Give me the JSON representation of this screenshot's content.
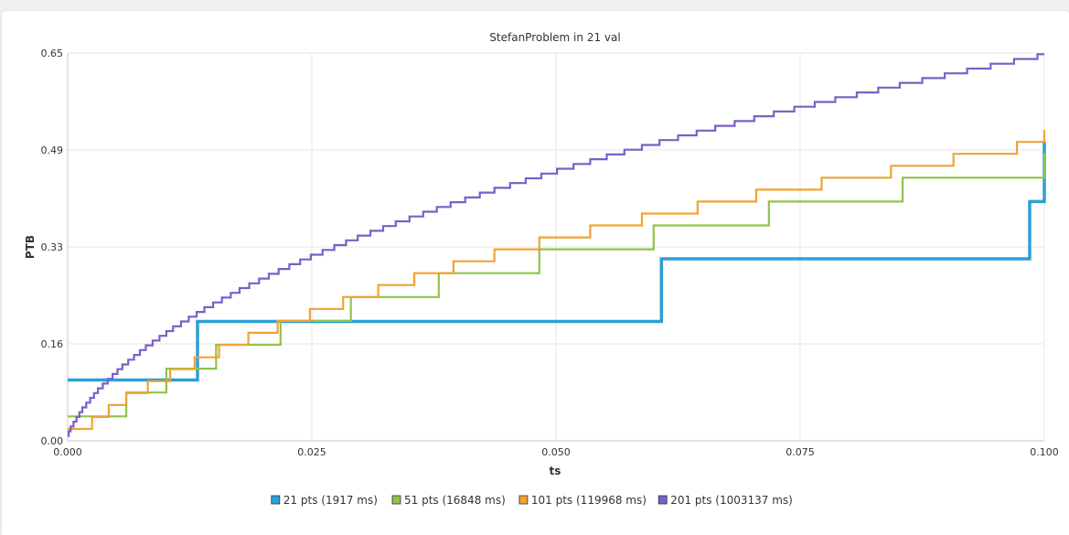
{
  "chart_data": {
    "type": "line",
    "step": true,
    "title": "StefanProblem in 21 val",
    "xlabel": "ts",
    "ylabel": "PTB",
    "xlim": [
      0,
      0.1
    ],
    "ylim": [
      0,
      0.65
    ],
    "x_ticks": [
      "0.000",
      "0.025",
      "0.050",
      "0.075",
      "0.100"
    ],
    "y_ticks": [
      "0.00",
      "0.16",
      "0.33",
      "0.49",
      "0.65"
    ],
    "grid": true,
    "legend_position": "bottom",
    "series": [
      {
        "name": "21 pts (1917 ms)",
        "color": "#2e9fd6",
        "x": [
          0.0,
          0.0133,
          0.032,
          0.0608,
          0.0985,
          0.1
        ],
        "y": [
          0.102,
          0.2,
          0.2,
          0.305,
          0.401,
          0.502
        ]
      },
      {
        "name": "51 pts (16848 ms)",
        "color": "#8fc44a",
        "x": [
          0.0,
          0.003,
          0.006,
          0.0101,
          0.0152,
          0.0218,
          0.029,
          0.038,
          0.0483,
          0.06,
          0.0718,
          0.0855,
          0.1
        ],
        "y": [
          0.041,
          0.041,
          0.081,
          0.121,
          0.161,
          0.201,
          0.241,
          0.281,
          0.321,
          0.361,
          0.401,
          0.441,
          0.482
        ]
      },
      {
        "name": "101 pts (119968 ms)",
        "color": "#f0a330",
        "x": [
          0.0,
          0.001,
          0.0025,
          0.0042,
          0.006,
          0.0082,
          0.0105,
          0.013,
          0.0155,
          0.0185,
          0.0215,
          0.0248,
          0.0282,
          0.0318,
          0.0355,
          0.0395,
          0.0437,
          0.0483,
          0.0535,
          0.0588,
          0.0645,
          0.0705,
          0.0772,
          0.0843,
          0.0907,
          0.0972,
          0.1
        ],
        "y": [
          0.02,
          0.02,
          0.04,
          0.06,
          0.08,
          0.1,
          0.12,
          0.14,
          0.161,
          0.181,
          0.201,
          0.221,
          0.241,
          0.261,
          0.281,
          0.301,
          0.321,
          0.341,
          0.361,
          0.381,
          0.401,
          0.421,
          0.441,
          0.461,
          0.481,
          0.501,
          0.521
        ]
      },
      {
        "name": "201 pts (1003137 ms)",
        "color": "#7b5fc8",
        "x": [
          0.0,
          0.0001,
          0.0003,
          0.0006,
          0.0009,
          0.0012,
          0.0015,
          0.0019,
          0.0023,
          0.0027,
          0.0031,
          0.0036,
          0.0041,
          0.0046,
          0.0051,
          0.0056,
          0.0062,
          0.0068,
          0.0074,
          0.008,
          0.0087,
          0.0094,
          0.0101,
          0.0108,
          0.0116,
          0.0124,
          0.0132,
          0.014,
          0.0149,
          0.0158,
          0.0167,
          0.0176,
          0.0186,
          0.0196,
          0.0206,
          0.0216,
          0.0227,
          0.0238,
          0.0249,
          0.0261,
          0.0273,
          0.0285,
          0.0297,
          0.031,
          0.0323,
          0.0336,
          0.035,
          0.0364,
          0.0378,
          0.0392,
          0.0407,
          0.0422,
          0.0437,
          0.0453,
          0.0469,
          0.0485,
          0.0501,
          0.0518,
          0.0535,
          0.0552,
          0.057,
          0.0588,
          0.0606,
          0.0625,
          0.0644,
          0.0663,
          0.0683,
          0.0703,
          0.0723,
          0.0744,
          0.0765,
          0.0786,
          0.0808,
          0.083,
          0.0852,
          0.0875,
          0.0898,
          0.0921,
          0.0945,
          0.0969,
          0.0993,
          0.1
        ],
        "y": [
          0.008,
          0.016,
          0.024,
          0.032,
          0.04,
          0.048,
          0.056,
          0.064,
          0.072,
          0.08,
          0.088,
          0.096,
          0.104,
          0.112,
          0.12,
          0.128,
          0.136,
          0.144,
          0.152,
          0.16,
          0.168,
          0.176,
          0.184,
          0.192,
          0.2,
          0.208,
          0.216,
          0.224,
          0.232,
          0.24,
          0.248,
          0.256,
          0.264,
          0.272,
          0.28,
          0.288,
          0.296,
          0.304,
          0.312,
          0.32,
          0.328,
          0.336,
          0.344,
          0.352,
          0.36,
          0.368,
          0.376,
          0.384,
          0.392,
          0.4,
          0.408,
          0.416,
          0.424,
          0.432,
          0.44,
          0.448,
          0.456,
          0.464,
          0.472,
          0.48,
          0.488,
          0.496,
          0.504,
          0.512,
          0.52,
          0.528,
          0.536,
          0.544,
          0.552,
          0.56,
          0.568,
          0.576,
          0.584,
          0.592,
          0.6,
          0.608,
          0.616,
          0.624,
          0.632,
          0.64,
          0.648,
          0.648
        ]
      }
    ]
  }
}
